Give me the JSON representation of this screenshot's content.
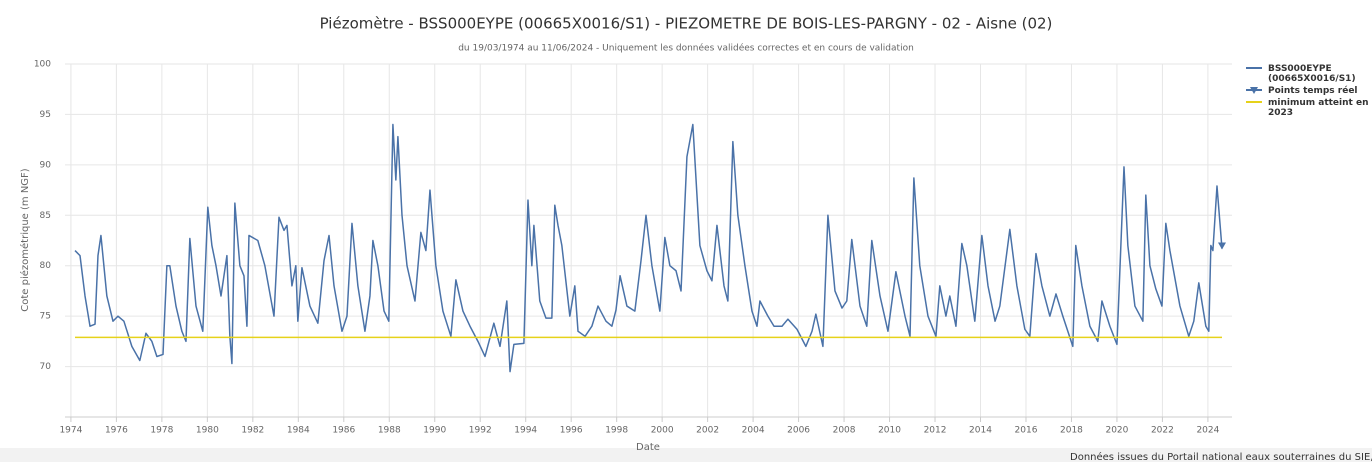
{
  "chart_data": {
    "type": "line",
    "title": "Piézomètre - BSS000EYPE (00665X0016/S1) - PIEZOMETRE DE BOIS-LES-PARGNY - 02 - Aisne (02)",
    "subtitle": "du 19/03/1974 au 11/06/2024 - Uniquement les données validées correctes et en cours de validation",
    "x_label": "Date",
    "y_label": "Cote piézométrique (m NGF)",
    "credit": "Données issues du Portail national eaux souterraines du SIE, ADES",
    "xlim": [
      1973.74,
      2025.06
    ],
    "xticks": [
      1974,
      1976,
      1978,
      1980,
      1982,
      1984,
      1986,
      1988,
      1990,
      1992,
      1994,
      1996,
      1998,
      2000,
      2002,
      2004,
      2006,
      2008,
      2010,
      2012,
      2014,
      2016,
      2018,
      2020,
      2022,
      2024
    ],
    "ylim": [
      65,
      100
    ],
    "yticks": [
      70,
      75,
      80,
      85,
      90,
      95,
      100
    ],
    "grid": true,
    "legend": "right",
    "series": [
      {
        "name": "BSS000EYPE (00665X0016/S1)",
        "color": "#4a72a8",
        "marker": "none",
        "x": [
          1974.18,
          1974.4,
          1974.62,
          1974.84,
          1975.06,
          1975.19,
          1975.32,
          1975.58,
          1975.85,
          1976.07,
          1976.33,
          1976.68,
          1977.03,
          1977.3,
          1977.56,
          1977.78,
          1978.05,
          1978.22,
          1978.35,
          1978.62,
          1978.88,
          1979.06,
          1979.23,
          1979.5,
          1979.8,
          1980.02,
          1980.2,
          1980.38,
          1980.6,
          1980.86,
          1980.99,
          1981.08,
          1981.21,
          1981.43,
          1981.61,
          1981.74,
          1981.83,
          1982.22,
          1982.53,
          1982.93,
          1983.15,
          1983.37,
          1983.5,
          1983.72,
          1983.89,
          1983.98,
          1984.16,
          1984.51,
          1984.86,
          1985.13,
          1985.35,
          1985.57,
          1985.92,
          1986.14,
          1986.36,
          1986.62,
          1986.93,
          1987.15,
          1987.28,
          1987.5,
          1987.77,
          1987.98,
          1988.16,
          1988.29,
          1988.38,
          1988.56,
          1988.78,
          1989.13,
          1989.39,
          1989.61,
          1989.79,
          1990.05,
          1990.36,
          1990.71,
          1990.93,
          1991.24,
          1991.55,
          1991.9,
          1992.21,
          1992.6,
          1992.87,
          1993.17,
          1993.31,
          1993.48,
          1993.92,
          1994.1,
          1994.27,
          1994.36,
          1994.62,
          1994.89,
          1995.15,
          1995.28,
          1995.42,
          1995.59,
          1995.94,
          1996.16,
          1996.3,
          1996.61,
          1996.91,
          1997.18,
          1997.53,
          1997.79,
          1997.97,
          1998.15,
          1998.45,
          1998.8,
          1999.07,
          1999.29,
          1999.55,
          1999.9,
          2000.12,
          2000.34,
          2000.61,
          2000.83,
          2001.09,
          2001.35,
          2001.66,
          2001.97,
          2002.19,
          2002.41,
          2002.72,
          2002.89,
          2003.11,
          2003.33,
          2003.64,
          2003.95,
          2004.17,
          2004.3,
          2004.65,
          2004.92,
          2005.27,
          2005.53,
          2005.93,
          2006.32,
          2006.59,
          2006.76,
          2007.07,
          2007.29,
          2007.6,
          2007.91,
          2008.12,
          2008.34,
          2008.7,
          2009.0,
          2009.22,
          2009.58,
          2009.93,
          2010.28,
          2010.68,
          2010.9,
          2011.07,
          2011.33,
          2011.69,
          2012.04,
          2012.21,
          2012.48,
          2012.65,
          2012.92,
          2013.18,
          2013.4,
          2013.75,
          2014.06,
          2014.33,
          2014.64,
          2014.85,
          2015.29,
          2015.6,
          2015.95,
          2016.17,
          2016.44,
          2016.7,
          2017.05,
          2017.32,
          2017.62,
          2018.06,
          2018.19,
          2018.46,
          2018.81,
          2019.16,
          2019.34,
          2019.69,
          2020.0,
          2020.31,
          2020.48,
          2020.79,
          2021.14,
          2021.27,
          2021.45,
          2021.71,
          2021.98,
          2022.15,
          2022.33,
          2022.77,
          2023.16,
          2023.38,
          2023.6,
          2023.91,
          2024.04,
          2024.13,
          2024.22,
          2024.4,
          2024.62
        ],
        "values": [
          81.5,
          81,
          77,
          74,
          74.2,
          81,
          83,
          77,
          74.5,
          75,
          74.5,
          72,
          70.6,
          73.3,
          72.5,
          71,
          71.2,
          80,
          80,
          76,
          73.5,
          72.5,
          82.7,
          76,
          73.5,
          85.8,
          82,
          80,
          77,
          81,
          73,
          70.3,
          86.2,
          80,
          79,
          74,
          83,
          82.5,
          80,
          75,
          84.8,
          83.5,
          84,
          78,
          80,
          74.5,
          79.8,
          76,
          74.3,
          80.5,
          83,
          78,
          73.5,
          75,
          84.2,
          78,
          73.5,
          77,
          82.5,
          80,
          75.5,
          74.5,
          94,
          88.5,
          92.8,
          85,
          80,
          76.5,
          83.3,
          81.5,
          87.5,
          80,
          75.5,
          73,
          78.6,
          75.5,
          74,
          72.5,
          71,
          74.3,
          72,
          76.5,
          69.5,
          72.2,
          72.3,
          86.5,
          80,
          84,
          76.5,
          74.8,
          74.8,
          86,
          84,
          82,
          75,
          78,
          73.5,
          73,
          74,
          76,
          74.5,
          74,
          75.6,
          79,
          76,
          75.5,
          80.5,
          85,
          80,
          75.5,
          82.8,
          80,
          79.5,
          77.5,
          90.8,
          94,
          82,
          79.5,
          78.5,
          84,
          78,
          76.5,
          92.3,
          85,
          80,
          75.5,
          74,
          76.5,
          75,
          74,
          74,
          74.7,
          73.7,
          72,
          73.5,
          75.2,
          72,
          85,
          77.5,
          75.8,
          76.5,
          82.6,
          76,
          74,
          82.5,
          77,
          73.5,
          79.4,
          75,
          73,
          88.7,
          80,
          75,
          73,
          78,
          75,
          77,
          74,
          82.2,
          80,
          74.5,
          83,
          78,
          74.5,
          76,
          83.6,
          78,
          73.7,
          73,
          81.2,
          78,
          75,
          77.2,
          75,
          72,
          82,
          78,
          74,
          72.5,
          76.5,
          74,
          72.2,
          89.8,
          82,
          76,
          74.5,
          87,
          80,
          77.7,
          76,
          84.2,
          81.5,
          76,
          73,
          74.5,
          78.3,
          74,
          73.5,
          82,
          81.5,
          87.9,
          81.7
        ]
      },
      {
        "name": "Points temps réel",
        "color": "#4a72a8",
        "marker": "triangle-down",
        "x": [
          2024.62
        ],
        "values": [
          82
        ]
      },
      {
        "name": "minimum atteint en 2023",
        "color": "#e6d21a",
        "marker": "none",
        "x": [
          1974.18,
          2024.62
        ],
        "values": [
          72.9,
          72.9
        ]
      }
    ]
  }
}
